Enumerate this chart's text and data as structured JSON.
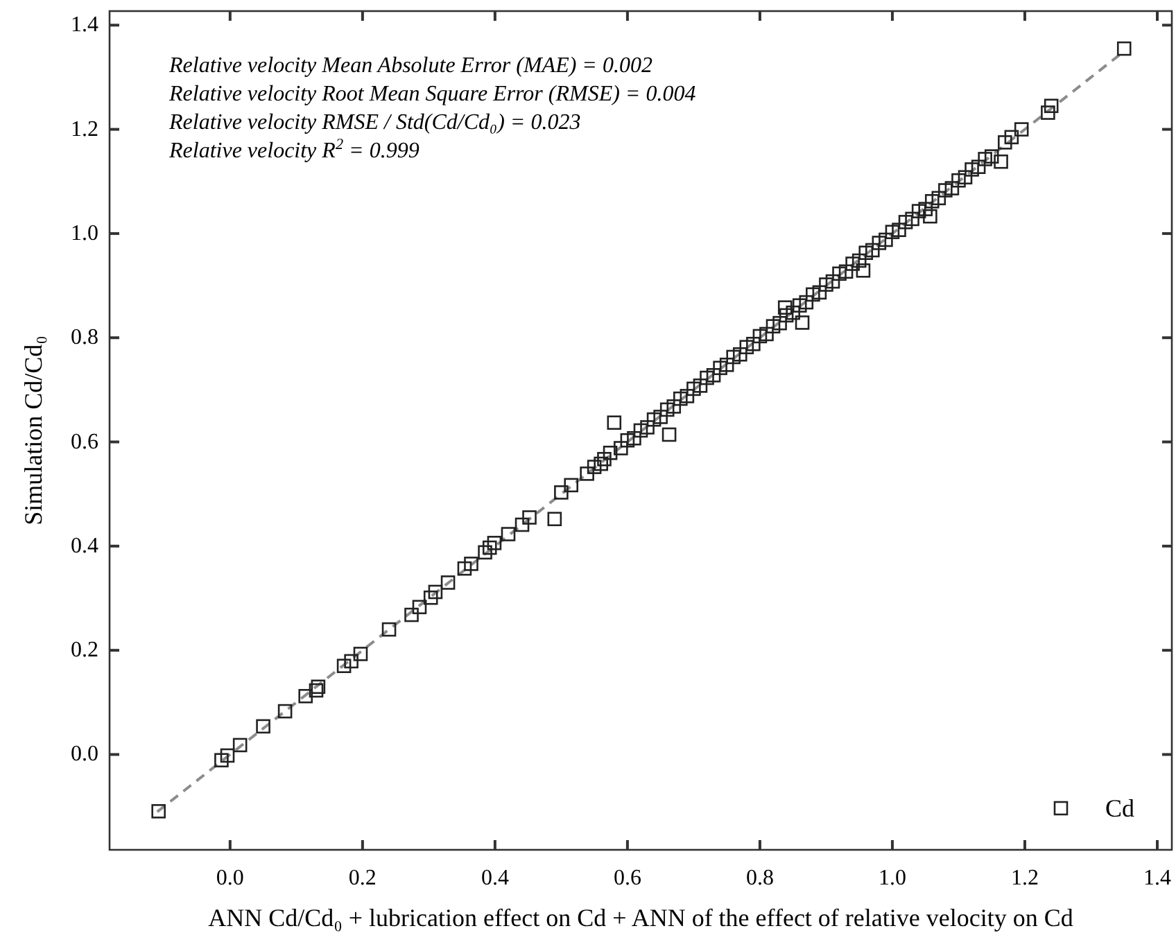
{
  "chart_data": {
    "type": "scatter",
    "xlabel": "ANN Cd/Cd₀ + lubrication effect on Cd + ANN of the effect of relative velocity on Cd",
    "ylabel": "Simulation Cd/Cd₀",
    "annotations": [
      "Relative velocity Mean Absolute Error (MAE) = 0.002",
      "Relative velocity Root Mean Square Error (RMSE) = 0.004",
      "Relative velocity RMSE / Std(Cd/Cd₀) = 0.023",
      "Relative velocity R$^{2}$ = 0.999"
    ],
    "xlim": [
      -0.182,
      1.422
    ],
    "ylim": [
      -0.183,
      1.427
    ],
    "xticks": [
      {
        "value": 0,
        "label": "0.0"
      },
      {
        "value": 0.2,
        "label": "0.2"
      },
      {
        "value": 0.4,
        "label": "0.4"
      },
      {
        "value": 0.6,
        "label": "0.6"
      },
      {
        "value": 0.8,
        "label": "0.8"
      },
      {
        "value": 1,
        "label": "1.0"
      },
      {
        "value": 1.2,
        "label": "1.2"
      },
      {
        "value": 1.4,
        "label": "1.4"
      }
    ],
    "yticks": [
      {
        "value": 0,
        "label": "0.0"
      },
      {
        "value": 0.2,
        "label": "0.2"
      },
      {
        "value": 0.4,
        "label": "0.4"
      },
      {
        "value": 0.6,
        "label": "0.6"
      },
      {
        "value": 0.8,
        "label": "0.8"
      },
      {
        "value": 1,
        "label": "1.0"
      },
      {
        "value": 1.2,
        "label": "1.2"
      },
      {
        "value": 1.4,
        "label": "1.4"
      }
    ],
    "grid": false,
    "legend": "bottom right",
    "series": [
      {
        "type": "line",
        "color": "#8c8c8c",
        "line_style": "dashed",
        "marker": "none",
        "x": [
          -0.11,
          1.35
        ],
        "values": [
          -0.11,
          1.35
        ]
      },
      {
        "name": "Cd",
        "color": "#222222",
        "marker": "square",
        "x": [
          -0.108,
          -0.013,
          -0.004,
          0.015,
          0.05,
          0.083,
          0.114,
          0.13,
          0.133,
          0.172,
          0.183,
          0.197,
          0.24,
          0.274,
          0.286,
          0.303,
          0.31,
          0.329,
          0.354,
          0.364,
          0.385,
          0.392,
          0.399,
          0.42,
          0.441,
          0.452,
          0.49,
          0.5,
          0.515,
          0.539,
          0.55,
          0.56,
          0.565,
          0.574,
          0.58,
          0.59,
          0.6,
          0.61,
          0.62,
          0.63,
          0.64,
          0.65,
          0.66,
          0.663,
          0.67,
          0.68,
          0.69,
          0.7,
          0.71,
          0.72,
          0.73,
          0.74,
          0.75,
          0.76,
          0.77,
          0.78,
          0.79,
          0.8,
          0.81,
          0.82,
          0.83,
          0.838,
          0.84,
          0.85,
          0.86,
          0.864,
          0.87,
          0.88,
          0.89,
          0.9,
          0.91,
          0.92,
          0.93,
          0.94,
          0.95,
          0.956,
          0.96,
          0.97,
          0.98,
          0.99,
          1.0,
          1.01,
          1.02,
          1.03,
          1.04,
          1.05,
          1.057,
          1.06,
          1.07,
          1.08,
          1.09,
          1.1,
          1.11,
          1.12,
          1.13,
          1.14,
          1.15,
          1.164,
          1.17,
          1.18,
          1.195,
          1.235,
          1.24,
          1.35
        ],
        "values": [
          -0.109,
          -0.011,
          -0.002,
          0.018,
          0.054,
          0.083,
          0.112,
          0.123,
          0.13,
          0.17,
          0.179,
          0.193,
          0.24,
          0.268,
          0.283,
          0.301,
          0.312,
          0.33,
          0.357,
          0.366,
          0.388,
          0.397,
          0.406,
          0.423,
          0.441,
          0.455,
          0.452,
          0.503,
          0.517,
          0.539,
          0.552,
          0.558,
          0.567,
          0.579,
          0.637,
          0.588,
          0.603,
          0.607,
          0.622,
          0.628,
          0.643,
          0.648,
          0.662,
          0.614,
          0.668,
          0.683,
          0.688,
          0.702,
          0.708,
          0.723,
          0.728,
          0.742,
          0.748,
          0.763,
          0.768,
          0.782,
          0.788,
          0.803,
          0.807,
          0.822,
          0.828,
          0.858,
          0.843,
          0.848,
          0.862,
          0.829,
          0.868,
          0.883,
          0.887,
          0.902,
          0.908,
          0.923,
          0.927,
          0.942,
          0.948,
          0.929,
          0.963,
          0.968,
          0.982,
          0.988,
          1.003,
          1.007,
          1.022,
          1.028,
          1.043,
          1.047,
          1.033,
          1.062,
          1.068,
          1.083,
          1.087,
          1.102,
          1.108,
          1.123,
          1.128,
          1.143,
          1.148,
          1.138,
          1.175,
          1.185,
          1.2,
          1.232,
          1.245,
          1.355
        ]
      }
    ]
  }
}
